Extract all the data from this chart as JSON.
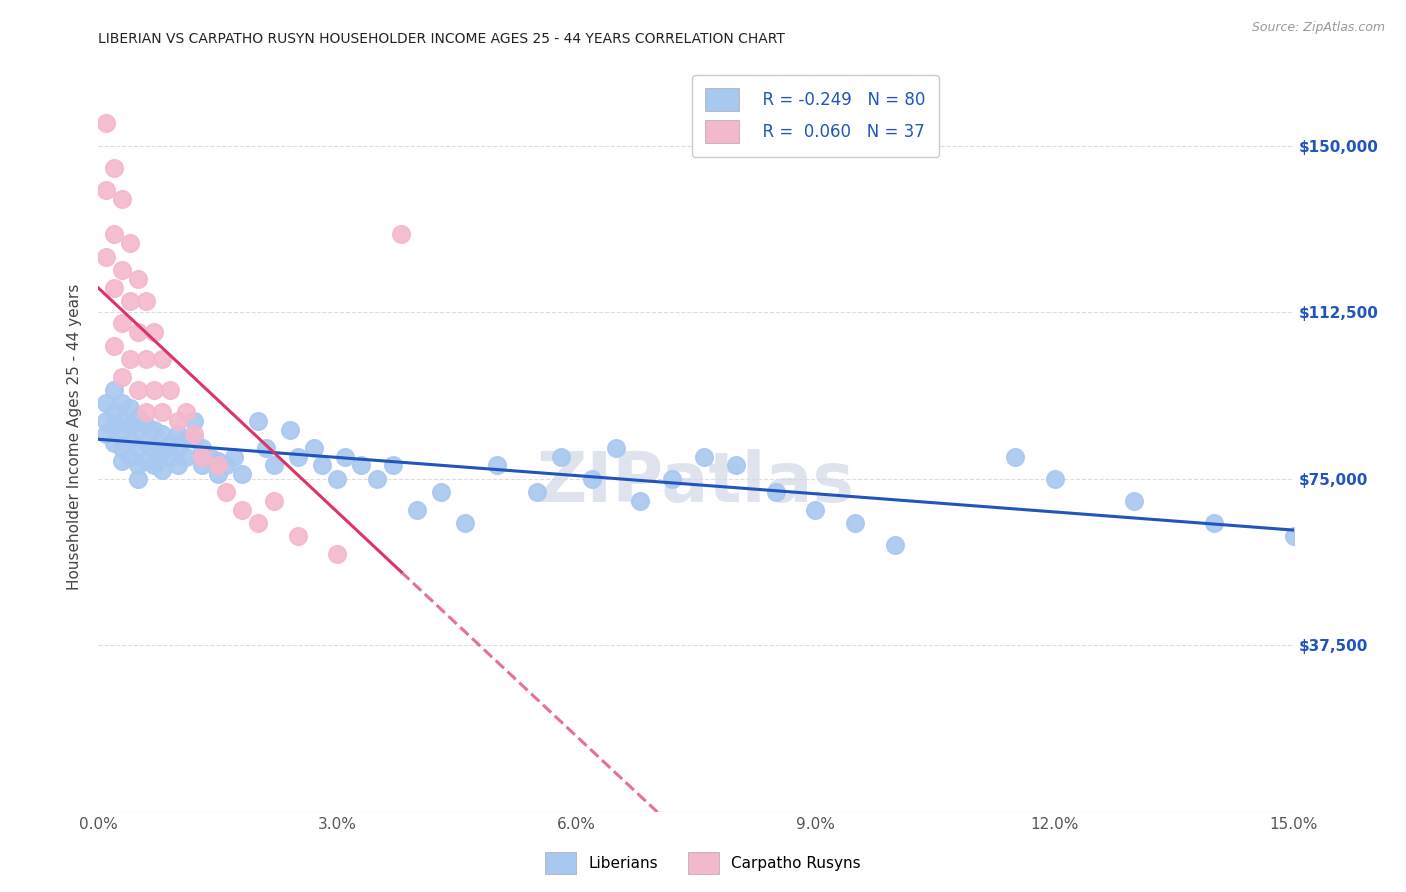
{
  "title": "LIBERIAN VS CARPATHO RUSYN HOUSEHOLDER INCOME AGES 25 - 44 YEARS CORRELATION CHART",
  "source": "Source: ZipAtlas.com",
  "ylabel": "Householder Income Ages 25 - 44 years",
  "xmin": 0.0,
  "xmax": 0.15,
  "ymin": 0,
  "ymax": 168750,
  "ytick_values": [
    0,
    37500,
    75000,
    112500,
    150000
  ],
  "ytick_labels_right": [
    "",
    "$37,500",
    "$75,000",
    "$112,500",
    "$150,000"
  ],
  "xtick_positions": [
    0.0,
    0.03,
    0.06,
    0.09,
    0.12,
    0.15
  ],
  "xtick_labels": [
    "0.0%",
    "3.0%",
    "6.0%",
    "9.0%",
    "12.0%",
    "15.0%"
  ],
  "blue_scatter_color": "#A8C8F0",
  "pink_scatter_color": "#F4B8CC",
  "blue_line_color": "#2255BB",
  "pink_line_color": "#DD3366",
  "grid_color": "#DDDDDD",
  "title_color": "#222222",
  "right_tick_color": "#2255BB",
  "watermark": "ZIPatlas",
  "legend_R1": "R = -0.249",
  "legend_N1": "N = 80",
  "legend_R2": "R =  0.060",
  "legend_N2": "N = 37",
  "blue_x": [
    0.001,
    0.001,
    0.001,
    0.002,
    0.002,
    0.002,
    0.002,
    0.003,
    0.003,
    0.003,
    0.003,
    0.003,
    0.004,
    0.004,
    0.004,
    0.004,
    0.005,
    0.005,
    0.005,
    0.005,
    0.005,
    0.006,
    0.006,
    0.006,
    0.007,
    0.007,
    0.007,
    0.008,
    0.008,
    0.008,
    0.009,
    0.009,
    0.01,
    0.01,
    0.01,
    0.011,
    0.011,
    0.012,
    0.012,
    0.013,
    0.013,
    0.014,
    0.015,
    0.015,
    0.016,
    0.017,
    0.018,
    0.02,
    0.021,
    0.022,
    0.024,
    0.025,
    0.027,
    0.028,
    0.03,
    0.031,
    0.033,
    0.035,
    0.037,
    0.04,
    0.043,
    0.046,
    0.05,
    0.055,
    0.058,
    0.062,
    0.065,
    0.068,
    0.072,
    0.076,
    0.08,
    0.085,
    0.09,
    0.095,
    0.1,
    0.115,
    0.12,
    0.13,
    0.14,
    0.15
  ],
  "blue_y": [
    92000,
    88000,
    85000,
    95000,
    90000,
    87000,
    83000,
    92000,
    88000,
    85000,
    82000,
    79000,
    91000,
    87000,
    84000,
    80000,
    89000,
    86000,
    82000,
    78000,
    75000,
    87000,
    83000,
    79000,
    86000,
    82000,
    78000,
    85000,
    81000,
    77000,
    83000,
    80000,
    85000,
    82000,
    78000,
    84000,
    80000,
    88000,
    84000,
    82000,
    78000,
    80000,
    79000,
    76000,
    78000,
    80000,
    76000,
    88000,
    82000,
    78000,
    86000,
    80000,
    82000,
    78000,
    75000,
    80000,
    78000,
    75000,
    78000,
    68000,
    72000,
    65000,
    78000,
    72000,
    80000,
    75000,
    82000,
    70000,
    75000,
    80000,
    78000,
    72000,
    68000,
    65000,
    60000,
    80000,
    75000,
    70000,
    65000,
    62000
  ],
  "pink_x": [
    0.001,
    0.001,
    0.001,
    0.002,
    0.002,
    0.002,
    0.002,
    0.003,
    0.003,
    0.003,
    0.003,
    0.004,
    0.004,
    0.004,
    0.005,
    0.005,
    0.005,
    0.006,
    0.006,
    0.006,
    0.007,
    0.007,
    0.008,
    0.008,
    0.009,
    0.01,
    0.011,
    0.012,
    0.013,
    0.015,
    0.016,
    0.018,
    0.02,
    0.022,
    0.025,
    0.03,
    0.038
  ],
  "pink_y": [
    155000,
    140000,
    125000,
    145000,
    130000,
    118000,
    105000,
    138000,
    122000,
    110000,
    98000,
    128000,
    115000,
    102000,
    120000,
    108000,
    95000,
    115000,
    102000,
    90000,
    108000,
    95000,
    102000,
    90000,
    95000,
    88000,
    90000,
    85000,
    80000,
    78000,
    72000,
    68000,
    65000,
    70000,
    62000,
    58000,
    130000
  ]
}
